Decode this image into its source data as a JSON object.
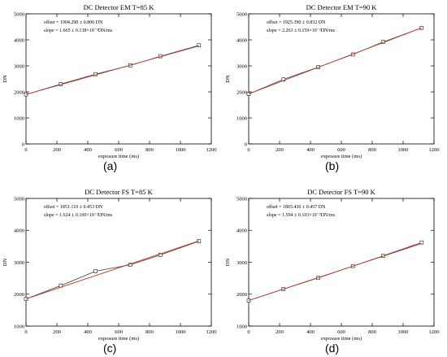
{
  "chart_data": [
    {
      "type": "line",
      "label": "(a)",
      "title": "DC Detector EM T=85 K",
      "xlabel": "exposure time (ms)",
      "ylabel": "DN",
      "xlim": [
        0,
        1200
      ],
      "ylim": [
        0,
        5000
      ],
      "xticks": [
        0,
        200,
        400,
        600,
        800,
        1000,
        1200
      ],
      "yticks": [
        0,
        1000,
        2000,
        3000,
        4000,
        5000
      ],
      "annotations": [
        "offset = 1904.290 ± 0.806 DN",
        "slope = 1.665 ± 0.138×10⁻²DN/ms"
      ],
      "series": [
        {
          "kind": "measured",
          "x": [
            0,
            225,
            450,
            675,
            870,
            1120
          ],
          "y": [
            1900,
            2300,
            2680,
            3020,
            3370,
            3790
          ]
        },
        {
          "kind": "fit",
          "x": [
            0,
            1120
          ],
          "y": [
            1904.29,
            3769
          ]
        }
      ],
      "colors": {
        "measured": "#3a3a3a",
        "fit": "#c0392b"
      }
    },
    {
      "type": "line",
      "label": "(b)",
      "title": "DC Detector EM T=90 K",
      "xlabel": "exposure time (ms)",
      "ylabel": "DN",
      "xlim": [
        0,
        1200
      ],
      "ylim": [
        0,
        5000
      ],
      "xticks": [
        0,
        200,
        400,
        600,
        800,
        1000,
        1200
      ],
      "yticks": [
        0,
        1000,
        2000,
        3000,
        4000,
        5000
      ],
      "annotations": [
        "offset = 1925.390 ± 0.832 DN",
        "slope = 2.263 ± 0.159×10⁻²DN/ms"
      ],
      "series": [
        {
          "kind": "measured",
          "x": [
            0,
            225,
            450,
            675,
            870,
            1120
          ],
          "y": [
            1920,
            2480,
            2950,
            3440,
            3920,
            4460
          ]
        },
        {
          "kind": "fit",
          "x": [
            0,
            1120
          ],
          "y": [
            1925.39,
            4460
          ]
        }
      ],
      "colors": {
        "measured": "#3a3a3a",
        "fit": "#c0392b"
      }
    },
    {
      "type": "line",
      "label": "(c)",
      "title": "DC Detector FS T=85 K",
      "xlabel": "exposure time (ms)",
      "ylabel": "DN",
      "xlim": [
        0,
        1200
      ],
      "ylim": [
        1000,
        5000
      ],
      "xticks": [
        0,
        200,
        400,
        600,
        800,
        1000,
        1200
      ],
      "yticks": [
        1000,
        2000,
        3000,
        4000,
        5000
      ],
      "annotations": [
        "offset = 1851.110 ± 0.453 DN",
        "slope = 1.624 ± 0.100×10⁻²DN/ms"
      ],
      "series": [
        {
          "kind": "measured",
          "x": [
            0,
            225,
            450,
            675,
            870,
            1120
          ],
          "y": [
            1850,
            2270,
            2720,
            2920,
            3230,
            3660
          ]
        },
        {
          "kind": "fit",
          "x": [
            0,
            1120
          ],
          "y": [
            1851.11,
            3670
          ]
        }
      ],
      "colors": {
        "measured": "#3a3a3a",
        "fit": "#c0392b"
      }
    },
    {
      "type": "line",
      "label": "(d)",
      "title": "DC Detector FS T=90 K",
      "xlabel": "exposure time (ms)",
      "ylabel": "DN",
      "xlim": [
        0,
        1200
      ],
      "ylim": [
        1000,
        5000
      ],
      "xticks": [
        0,
        200,
        400,
        600,
        800,
        1000,
        1200
      ],
      "yticks": [
        1000,
        2000,
        3000,
        4000,
        5000
      ],
      "annotations": [
        "offset = 1803.430 ± 0.457 DN",
        "slope = 1.594 ± 0.103×10⁻²DN/ms"
      ],
      "series": [
        {
          "kind": "measured",
          "x": [
            0,
            225,
            450,
            675,
            870,
            1120
          ],
          "y": [
            1800,
            2160,
            2510,
            2880,
            3200,
            3620
          ]
        },
        {
          "kind": "fit",
          "x": [
            0,
            1120
          ],
          "y": [
            1803.43,
            3589
          ]
        }
      ],
      "colors": {
        "measured": "#3a3a3a",
        "fit": "#c0392b"
      }
    }
  ]
}
